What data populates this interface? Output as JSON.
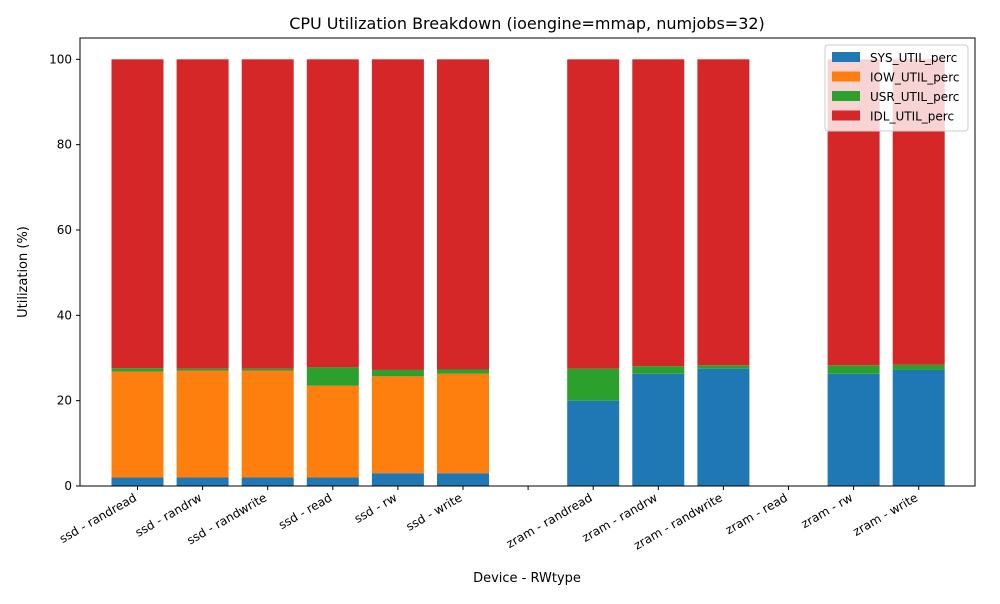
{
  "chart_data": {
    "type": "bar",
    "stacked": true,
    "title": "CPU Utilization Breakdown (ioengine=mmap, numjobs=32)",
    "xlabel": "Device - RWtype",
    "ylabel": "Utilization (%)",
    "ylim": [
      0,
      105
    ],
    "yticks": [
      0,
      20,
      40,
      60,
      80,
      100
    ],
    "grid": false,
    "legend_position": "top-right",
    "categories": [
      "ssd - randread",
      "ssd - randrw",
      "ssd - randwrite",
      "ssd - read",
      "ssd - rw",
      "ssd - write",
      "",
      "zram - randread",
      "zram - randrw",
      "zram - randwrite",
      "zram - read",
      "zram - rw",
      "zram - write"
    ],
    "series": [
      {
        "name": "SYS_UTIL_perc",
        "color": "#1f77b4",
        "values": [
          2.0,
          2.0,
          2.0,
          2.0,
          3.0,
          3.0,
          0,
          20.0,
          26.3,
          27.5,
          0,
          26.3,
          27.2
        ]
      },
      {
        "name": "IOW_UTIL_perc",
        "color": "#ff7f0e",
        "values": [
          24.8,
          25.0,
          25.0,
          21.5,
          22.7,
          23.3,
          0,
          0,
          0,
          0,
          0,
          0,
          0
        ]
      },
      {
        "name": "USR_UTIL_perc",
        "color": "#2ca02c",
        "values": [
          0.8,
          0.5,
          0.5,
          4.3,
          1.5,
          1.0,
          0,
          7.5,
          1.8,
          0.8,
          0,
          2.0,
          1.2
        ]
      },
      {
        "name": "IDL_UTIL_perc",
        "color": "#d62728",
        "values": [
          72.4,
          72.5,
          72.5,
          72.2,
          72.8,
          72.7,
          0,
          72.5,
          71.9,
          71.7,
          0,
          71.7,
          71.6
        ]
      }
    ]
  }
}
